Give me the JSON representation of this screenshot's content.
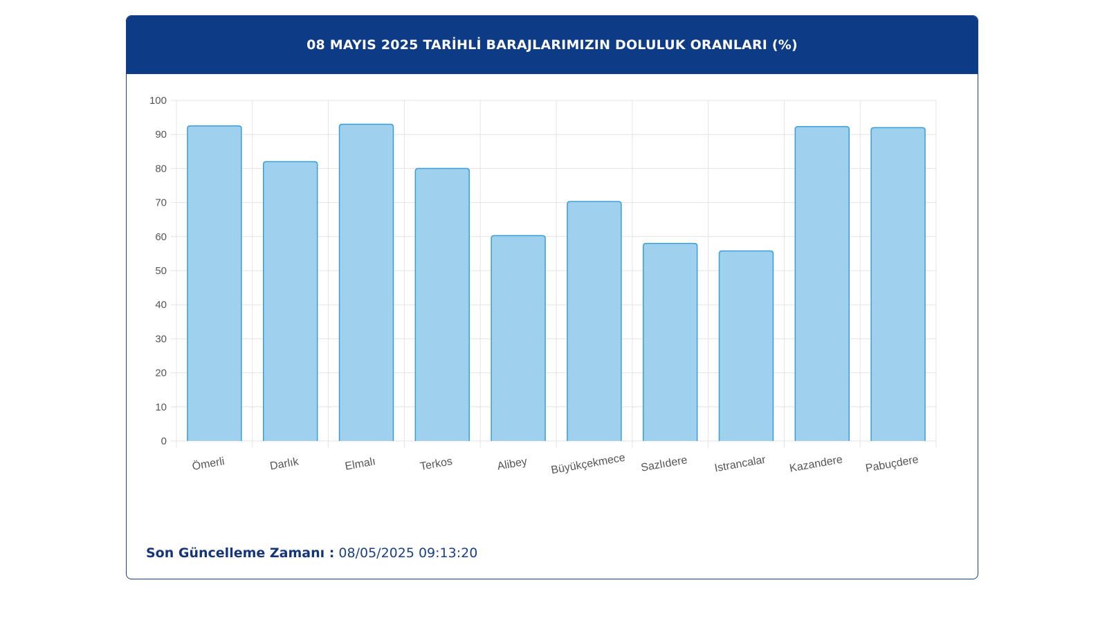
{
  "header": {
    "title": "08 MAYIS 2025 TARİHLİ BARAJLARIMIZIN DOLULUK ORANLARI (%)"
  },
  "footer": {
    "label": "Son Güncelleme Zamanı :",
    "value": "08/05/2025 09:13:20"
  },
  "colors": {
    "header_bg": "#0e3b85",
    "bar_fill": "#9fd0ee",
    "bar_stroke": "#3a9ed6",
    "grid": "#e3e3e3",
    "text_dark": "#1b3f86"
  },
  "chart_data": {
    "type": "bar",
    "title": "08 MAYIS 2025 TARİHLİ BARAJLARIMIZIN DOLULUK ORANLARI (%)",
    "xlabel": "",
    "ylabel": "",
    "categories": [
      "Ömerli",
      "Darlık",
      "Elmalı",
      "Terkos",
      "Alibey",
      "Büyükçekmece",
      "Sazlıdere",
      "Istrancalar",
      "Kazandere",
      "Pabuçdere"
    ],
    "values": [
      92.5,
      82,
      93,
      80,
      60.3,
      70.3,
      58,
      55.8,
      92.3,
      92
    ],
    "ylim": [
      0,
      100
    ],
    "yticks": [
      0,
      10,
      20,
      30,
      40,
      50,
      60,
      70,
      80,
      90,
      100
    ],
    "grid": true,
    "legend": "none"
  }
}
